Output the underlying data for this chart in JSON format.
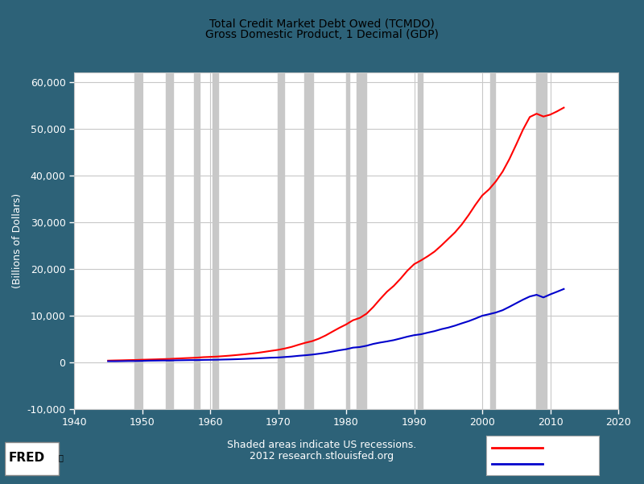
{
  "title_line1": "Total Credit Market Debt Owed (TCMDO)",
  "title_line2": "Gross Domestic Product, 1 Decimal (GDP)",
  "xlabel_line1": "Shaded areas indicate US recessions.",
  "xlabel_line2": "2012 research.stlouisfed.org",
  "ylabel": "(Billions of Dollars)",
  "xlim": [
    1940,
    2020
  ],
  "ylim": [
    -10000,
    62000
  ],
  "yticks": [
    -10000,
    0,
    10000,
    20000,
    30000,
    40000,
    50000,
    60000
  ],
  "xticks": [
    1940,
    1950,
    1960,
    1970,
    1980,
    1990,
    2000,
    2010,
    2020
  ],
  "background_outer": "#2d6278",
  "background_plot": "#ffffff",
  "recession_color": "#c8c8c8",
  "recession_alpha": 1.0,
  "recessions": [
    [
      1948.9,
      1949.9
    ],
    [
      1953.5,
      1954.5
    ],
    [
      1957.6,
      1958.5
    ],
    [
      1960.3,
      1961.2
    ],
    [
      1969.9,
      1970.9
    ],
    [
      1973.9,
      1975.2
    ],
    [
      1980.0,
      1980.5
    ],
    [
      1981.5,
      1982.9
    ],
    [
      1990.5,
      1991.2
    ],
    [
      2001.2,
      2001.9
    ],
    [
      2007.9,
      2009.5
    ]
  ],
  "debt_years": [
    1945,
    1946,
    1947,
    1948,
    1949,
    1950,
    1951,
    1952,
    1953,
    1954,
    1955,
    1956,
    1957,
    1958,
    1959,
    1960,
    1961,
    1962,
    1963,
    1964,
    1965,
    1966,
    1967,
    1968,
    1969,
    1970,
    1971,
    1972,
    1973,
    1974,
    1975,
    1976,
    1977,
    1978,
    1979,
    1980,
    1981,
    1982,
    1983,
    1984,
    1985,
    1986,
    1987,
    1988,
    1989,
    1990,
    1991,
    1992,
    1993,
    1994,
    1995,
    1996,
    1997,
    1998,
    1999,
    2000,
    2001,
    2002,
    2003,
    2004,
    2005,
    2006,
    2007,
    2008,
    2009,
    2010,
    2011,
    2012
  ],
  "debt_values": [
    350,
    390,
    420,
    460,
    490,
    540,
    580,
    620,
    670,
    710,
    790,
    860,
    920,
    980,
    1090,
    1150,
    1220,
    1320,
    1430,
    1560,
    1700,
    1850,
    2020,
    2230,
    2450,
    2660,
    2950,
    3300,
    3750,
    4170,
    4520,
    5060,
    5750,
    6570,
    7370,
    8100,
    8990,
    9490,
    10400,
    11850,
    13530,
    15100,
    16350,
    17900,
    19600,
    21000,
    21800,
    22700,
    23700,
    25000,
    26400,
    27800,
    29500,
    31500,
    33700,
    35700,
    37000,
    38700,
    40800,
    43500,
    46600,
    49800,
    52500,
    53200,
    52600,
    53000,
    53700,
    54500
  ],
  "gdp_years": [
    1945,
    1946,
    1947,
    1948,
    1949,
    1950,
    1951,
    1952,
    1953,
    1954,
    1955,
    1956,
    1957,
    1958,
    1959,
    1960,
    1961,
    1962,
    1963,
    1964,
    1965,
    1966,
    1967,
    1968,
    1969,
    1970,
    1971,
    1972,
    1973,
    1974,
    1975,
    1976,
    1977,
    1978,
    1979,
    1980,
    1981,
    1982,
    1983,
    1984,
    1985,
    1986,
    1987,
    1988,
    1989,
    1990,
    1991,
    1992,
    1993,
    1994,
    1995,
    1996,
    1997,
    1998,
    1999,
    2000,
    2001,
    2002,
    2003,
    2004,
    2005,
    2006,
    2007,
    2008,
    2009,
    2010,
    2011,
    2012
  ],
  "gdp_values": [
    223,
    222,
    243,
    269,
    267,
    293,
    339,
    358,
    379,
    380,
    414,
    437,
    461,
    467,
    507,
    527,
    545,
    586,
    618,
    663,
    719,
    787,
    833,
    910,
    982,
    1024,
    1126,
    1237,
    1382,
    1500,
    1638,
    1824,
    2030,
    2295,
    2563,
    2789,
    3128,
    3255,
    3536,
    3933,
    4220,
    4463,
    4736,
    5100,
    5482,
    5800,
    5992,
    6342,
    6667,
    7085,
    7415,
    7838,
    8332,
    8793,
    9353,
    9951,
    10286,
    10642,
    11142,
    11868,
    12638,
    13399,
    14078,
    14441,
    13878,
    14526,
    15094,
    15685
  ],
  "debt_color": "#ff0000",
  "gdp_color": "#0000cc",
  "line_width": 1.5,
  "title_color": "#000000",
  "axes_label_color": "#ffffff",
  "tick_label_color": "#ffffff",
  "grid_color": "#c8c8c8",
  "legend_box_color": "#ffffff"
}
